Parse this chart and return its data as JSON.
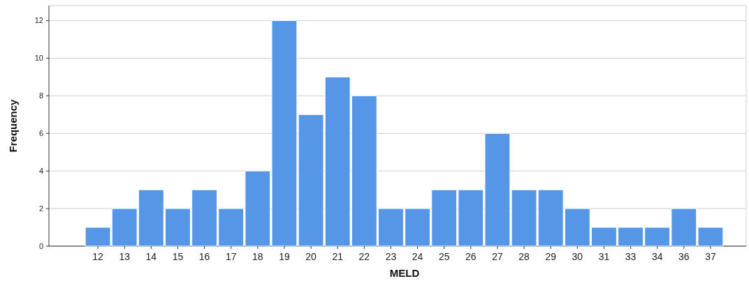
{
  "chart_data": {
    "type": "bar",
    "xlabel": "MELD",
    "ylabel": "Frequency",
    "categories": [
      "12",
      "13",
      "14",
      "15",
      "16",
      "17",
      "18",
      "19",
      "20",
      "21",
      "22",
      "23",
      "24",
      "25",
      "26",
      "27",
      "28",
      "29",
      "30",
      "31",
      "33",
      "34",
      "36",
      "37"
    ],
    "values": [
      1,
      2,
      3,
      2,
      3,
      2,
      4,
      12,
      7,
      9,
      8,
      2,
      2,
      3,
      3,
      6,
      3,
      3,
      2,
      1,
      1,
      1,
      2,
      1
    ],
    "color": "#5596e6",
    "ylim": [
      0,
      12.8
    ],
    "yticks": [
      0,
      2,
      4,
      6,
      8,
      10,
      12
    ],
    "grid": "y"
  }
}
